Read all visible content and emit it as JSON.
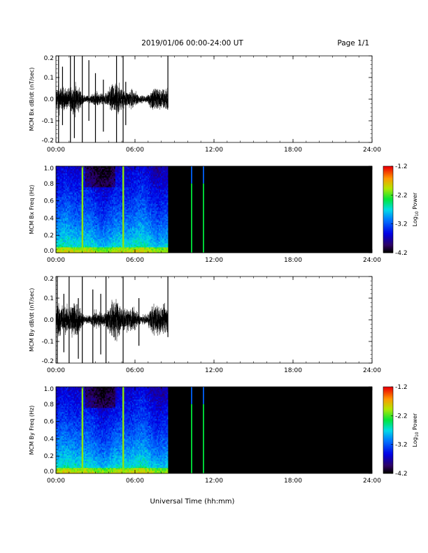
{
  "header": {
    "date_range": "2019/01/06  00:00-24:00 UT",
    "page": "Page 1/1"
  },
  "xaxis": {
    "label": "Universal Time (hh:mm)",
    "range_hours": [
      0,
      24
    ],
    "tick_labels": [
      "00:00",
      "06:00",
      "12:00",
      "18:00",
      "24:00"
    ]
  },
  "colorbar": {
    "label_base": "Log",
    "label_sub": "10",
    "label_rest": " Power",
    "range": [
      -4.2,
      -1.2
    ],
    "tick_labels": [
      "-1.2",
      "-2.2",
      "-3.2",
      "-4.2"
    ]
  },
  "chart_data": [
    {
      "type": "line",
      "name": "bx-dbdt",
      "ylabel": "MCM Bx dB/dt (nT/sec)",
      "ylim": [
        -0.2,
        0.2
      ],
      "ytick_labels": [
        "0.2",
        "0.1",
        "0.0",
        "-0.1",
        "-0.2"
      ],
      "data_end_hour": 8.5,
      "typical_amplitude": 0.04,
      "spikes": [
        {
          "hour": 0.2,
          "min": -0.2,
          "max": 0.2
        },
        {
          "hour": 0.5,
          "min": -0.12,
          "max": 0.15
        },
        {
          "hour": 1.1,
          "min": -0.2,
          "max": 0.2
        },
        {
          "hour": 1.4,
          "min": -0.18,
          "max": 0.2
        },
        {
          "hour": 2.0,
          "min": -0.2,
          "max": 0.2
        },
        {
          "hour": 2.5,
          "min": -0.1,
          "max": 0.18
        },
        {
          "hour": 3.0,
          "min": -0.2,
          "max": 0.12
        },
        {
          "hour": 3.6,
          "min": -0.15,
          "max": 0.09
        },
        {
          "hour": 4.6,
          "min": -0.2,
          "max": 0.2
        },
        {
          "hour": 5.1,
          "min": -0.2,
          "max": 0.2
        },
        {
          "hour": 5.3,
          "min": -0.12,
          "max": 0.08
        },
        {
          "hour": 8.5,
          "min": -0.04,
          "max": 0.2
        }
      ]
    },
    {
      "type": "heatmap",
      "name": "bx-spectrogram",
      "ylabel": "MCM Bx Freq (Hz)",
      "ylim": [
        0.0,
        1.0
      ],
      "ytick_labels": [
        "1.0",
        "0.8",
        "0.6",
        "0.4",
        "0.2",
        "0.0"
      ],
      "zlim": [
        -4.2,
        -1.2
      ],
      "data_end_hour": 8.5,
      "broadband_hours": [
        2.0,
        5.1
      ],
      "isolated_lines": [
        {
          "hour": 10.3,
          "top_freq": 1.0
        },
        {
          "hour": 11.2,
          "top_freq": 1.0
        }
      ]
    },
    {
      "type": "line",
      "name": "by-dbdt",
      "ylabel": "MCM By dB/dt (nT/sec)",
      "ylim": [
        -0.2,
        0.2
      ],
      "ytick_labels": [
        "0.2",
        "0.1",
        "0.0",
        "-0.1",
        "-0.2"
      ],
      "data_end_hour": 8.5,
      "typical_amplitude": 0.05,
      "spikes": [
        {
          "hour": 0.1,
          "min": -0.2,
          "max": 0.2
        },
        {
          "hour": 0.6,
          "min": -0.15,
          "max": 0.12
        },
        {
          "hour": 1.0,
          "min": -0.2,
          "max": 0.2
        },
        {
          "hour": 1.7,
          "min": -0.18,
          "max": 0.1
        },
        {
          "hour": 2.0,
          "min": -0.2,
          "max": 0.2
        },
        {
          "hour": 2.8,
          "min": -0.2,
          "max": 0.14
        },
        {
          "hour": 3.4,
          "min": -0.16,
          "max": 0.12
        },
        {
          "hour": 3.8,
          "min": -0.2,
          "max": 0.2
        },
        {
          "hour": 5.1,
          "min": -0.2,
          "max": 0.2
        },
        {
          "hour": 6.3,
          "min": -0.12,
          "max": 0.1
        },
        {
          "hour": 8.5,
          "min": -0.08,
          "max": 0.2
        }
      ]
    },
    {
      "type": "heatmap",
      "name": "by-spectrogram",
      "ylabel": "MCM By Freq (Hz)",
      "ylim": [
        0.0,
        1.0
      ],
      "ytick_labels": [
        "1.0",
        "0.8",
        "0.6",
        "0.4",
        "0.2",
        "0.0"
      ],
      "zlim": [
        -4.2,
        -1.2
      ],
      "data_end_hour": 8.5,
      "broadband_hours": [
        2.0,
        5.1
      ],
      "isolated_lines": [
        {
          "hour": 10.3,
          "top_freq": 1.0
        },
        {
          "hour": 11.2,
          "top_freq": 1.0
        }
      ]
    }
  ]
}
